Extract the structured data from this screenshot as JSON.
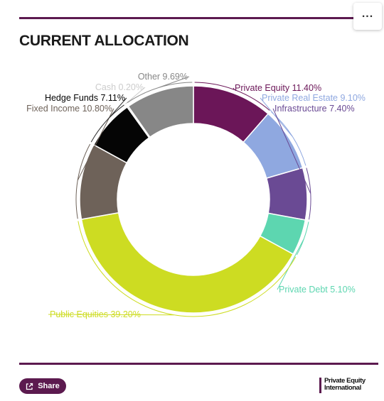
{
  "title": "CURRENT ALLOCATION",
  "menu": {
    "icon": "ellipsis-icon",
    "label": "..."
  },
  "share": {
    "label": "Share",
    "icon": "share-icon"
  },
  "brand": {
    "line1": "Private Equity",
    "line2": "International"
  },
  "chart_data": {
    "type": "pie",
    "variant": "donut",
    "slices": [
      {
        "label": "Private Equity 11.40%",
        "value": 11.4,
        "color": "#6b1658"
      },
      {
        "label": "Private Real Estate 9.10%",
        "value": 9.1,
        "color": "#8fa8e0"
      },
      {
        "label": "Infrastructure 7.40%",
        "value": 7.4,
        "color": "#6a4a94"
      },
      {
        "label": "Private Debt 5.10%",
        "value": 5.1,
        "color": "#5dd6b0"
      },
      {
        "label": "Public Equities 39.20%",
        "value": 39.2,
        "color": "#cddc22"
      },
      {
        "label": "Fixed Income 10.80%",
        "value": 10.8,
        "color": "#6e6259"
      },
      {
        "label": "Hedge Funds 7.11%",
        "value": 7.11,
        "color": "#050505"
      },
      {
        "label": "Cash 0.20%",
        "value": 0.2,
        "color": "#cccccc"
      },
      {
        "label": "Other 9.69%",
        "value": 9.69,
        "color": "#878787"
      }
    ]
  }
}
